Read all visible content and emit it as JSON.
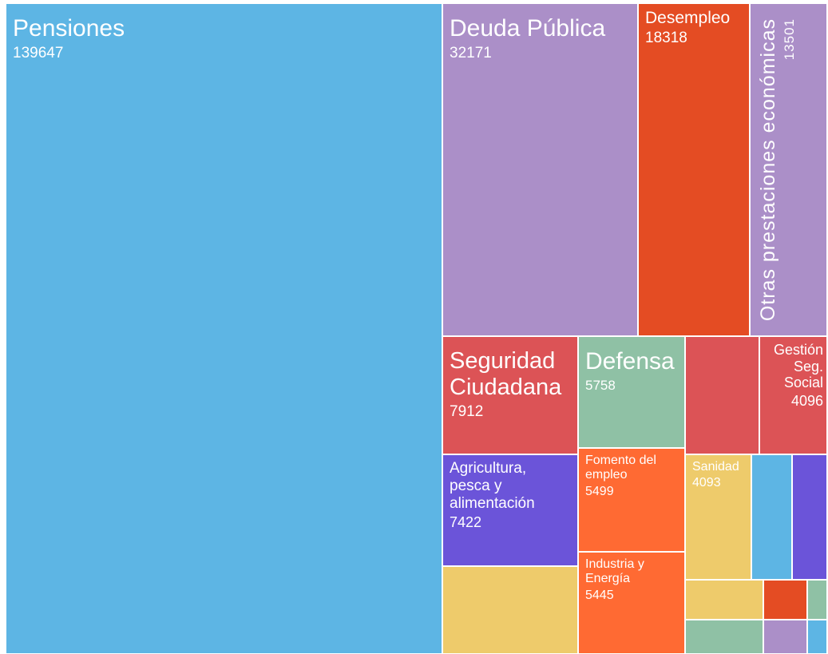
{
  "chart_data": {
    "type": "treemap",
    "categories": [
      "Pensiones",
      "Deuda Pública",
      "Desempleo",
      "Otras prestaciones económicas",
      "Seguridad Ciudadana",
      "Defensa",
      null,
      "Gestión Seg. Social",
      "Agricultura, pesca y alimentación",
      null,
      "Fomento del empleo",
      "Industria y Energía",
      "Sanidad",
      null,
      null,
      null,
      null,
      null,
      null,
      null,
      null
    ],
    "values": [
      139647,
      32171,
      18318,
      13501,
      7912,
      5758,
      4400,
      4096,
      7422,
      5300,
      5499,
      5445,
      4093,
      2400,
      2050,
      1450,
      800,
      350,
      1240,
      690,
      300
    ],
    "colors": [
      "#5db5e4",
      "#ab8fc8",
      "#e44c23",
      "#ab8fc8",
      "#dc5356",
      "#8fc1a5",
      "#dc5356",
      "#dc5356",
      "#6b54d9",
      "#eecb6b",
      "#ff6a33",
      "#ff6a33",
      "#eecb6b",
      "#5db5e4",
      "#6b54d9",
      "#eecb6b",
      "#e44c23",
      "#8fc1a5",
      "#8fc1a5",
      "#ab8fc8",
      "#5db5e4"
    ]
  }
}
